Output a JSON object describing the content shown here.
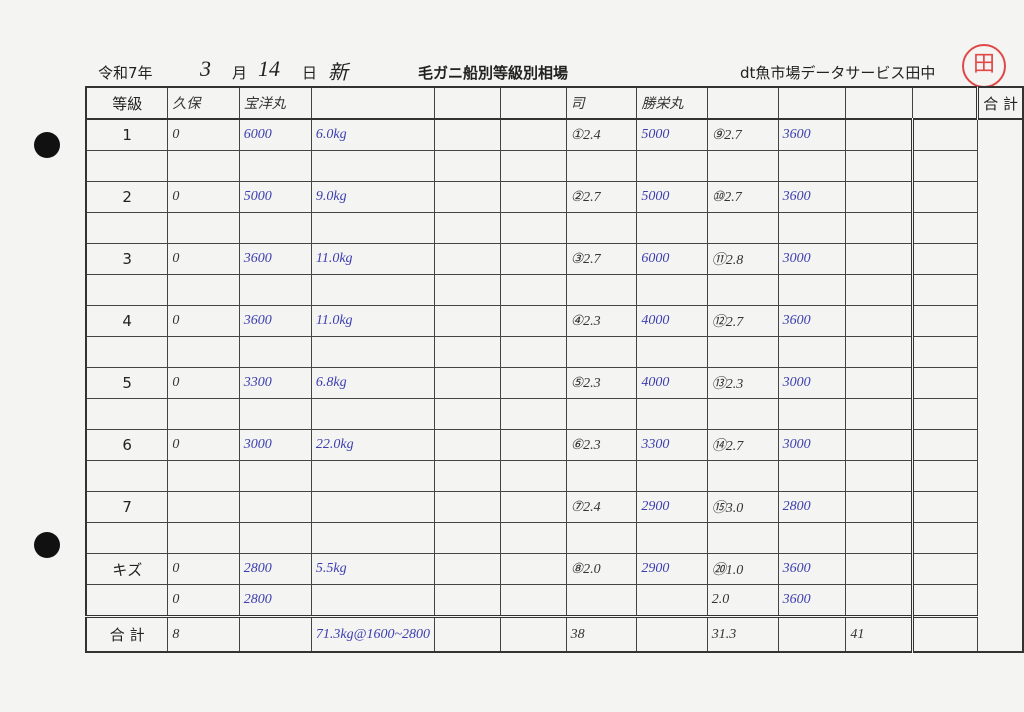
{
  "header": {
    "era_year": "令和7年",
    "month_value": "3",
    "month_label": "月",
    "day_value": "14",
    "day_label": "日",
    "day_note": "新",
    "title": "毛ガニ船別等級別相場",
    "company": "dt魚市場データサービス田中",
    "stamp": "田"
  },
  "table": {
    "grade_header": "等級",
    "total_header": "合 計",
    "column_headers": [
      "久保",
      "宝洋丸",
      "",
      "",
      "",
      "司",
      "勝栄丸",
      "",
      "",
      "",
      ""
    ],
    "rows": [
      {
        "grade": "1",
        "cells": [
          "0",
          "6000",
          "6.0kg",
          "",
          "",
          "①2.4",
          "5000",
          "⑨2.7",
          "3600",
          "",
          ""
        ]
      },
      {
        "grade": "",
        "cells": [
          "",
          "",
          "",
          "",
          "",
          "",
          "",
          "",
          "",
          "",
          ""
        ]
      },
      {
        "grade": "2",
        "cells": [
          "0",
          "5000",
          "9.0kg",
          "",
          "",
          "②2.7",
          "5000",
          "⑩2.7",
          "3600",
          "",
          ""
        ]
      },
      {
        "grade": "",
        "cells": [
          "",
          "",
          "",
          "",
          "",
          "",
          "",
          "",
          "",
          "",
          ""
        ]
      },
      {
        "grade": "3",
        "cells": [
          "0",
          "3600",
          "11.0kg",
          "",
          "",
          "③2.7",
          "6000",
          "⑪2.8",
          "3000",
          "",
          ""
        ]
      },
      {
        "grade": "",
        "cells": [
          "",
          "",
          "",
          "",
          "",
          "",
          "",
          "",
          "",
          "",
          ""
        ]
      },
      {
        "grade": "4",
        "cells": [
          "0",
          "3600",
          "11.0kg",
          "",
          "",
          "④2.3",
          "4000",
          "⑫2.7",
          "3600",
          "",
          ""
        ]
      },
      {
        "grade": "",
        "cells": [
          "",
          "",
          "",
          "",
          "",
          "",
          "",
          "",
          "",
          "",
          ""
        ]
      },
      {
        "grade": "5",
        "cells": [
          "0",
          "3300",
          "6.8kg",
          "",
          "",
          "⑤2.3",
          "4000",
          "⑬2.3",
          "3000",
          "",
          ""
        ]
      },
      {
        "grade": "",
        "cells": [
          "",
          "",
          "",
          "",
          "",
          "",
          "",
          "",
          "",
          "",
          ""
        ]
      },
      {
        "grade": "6",
        "cells": [
          "0",
          "3000",
          "22.0kg",
          "",
          "",
          "⑥2.3",
          "3300",
          "⑭2.7",
          "3000",
          "",
          ""
        ]
      },
      {
        "grade": "",
        "cells": [
          "",
          "",
          "",
          "",
          "",
          "",
          "",
          "",
          "",
          "",
          ""
        ]
      },
      {
        "grade": "7",
        "cells": [
          "",
          "",
          "",
          "",
          "",
          "⑦2.4",
          "2900",
          "⑮3.0",
          "2800",
          "",
          ""
        ]
      },
      {
        "grade": "",
        "cells": [
          "",
          "",
          "",
          "",
          "",
          "",
          "",
          "",
          "",
          "",
          ""
        ]
      },
      {
        "grade": "キズ",
        "cells": [
          "0",
          "2800",
          "5.5kg",
          "",
          "",
          "⑧2.0",
          "2900",
          "⑳1.0",
          "3600",
          "",
          ""
        ]
      },
      {
        "grade": "",
        "cells": [
          "0",
          "2800",
          "",
          "",
          "",
          "",
          "",
          "2.0",
          "3600",
          "",
          ""
        ]
      }
    ],
    "total_row": {
      "label": "合 計",
      "cells": [
        "8",
        "",
        "71.3kg@1600~2800",
        "",
        "",
        "38",
        "",
        "31.3",
        "",
        "41",
        ""
      ]
    }
  },
  "colors": {
    "ink_blue": "#3b3db0",
    "ink_dark": "#333333",
    "stamp_red": "#e04848"
  }
}
